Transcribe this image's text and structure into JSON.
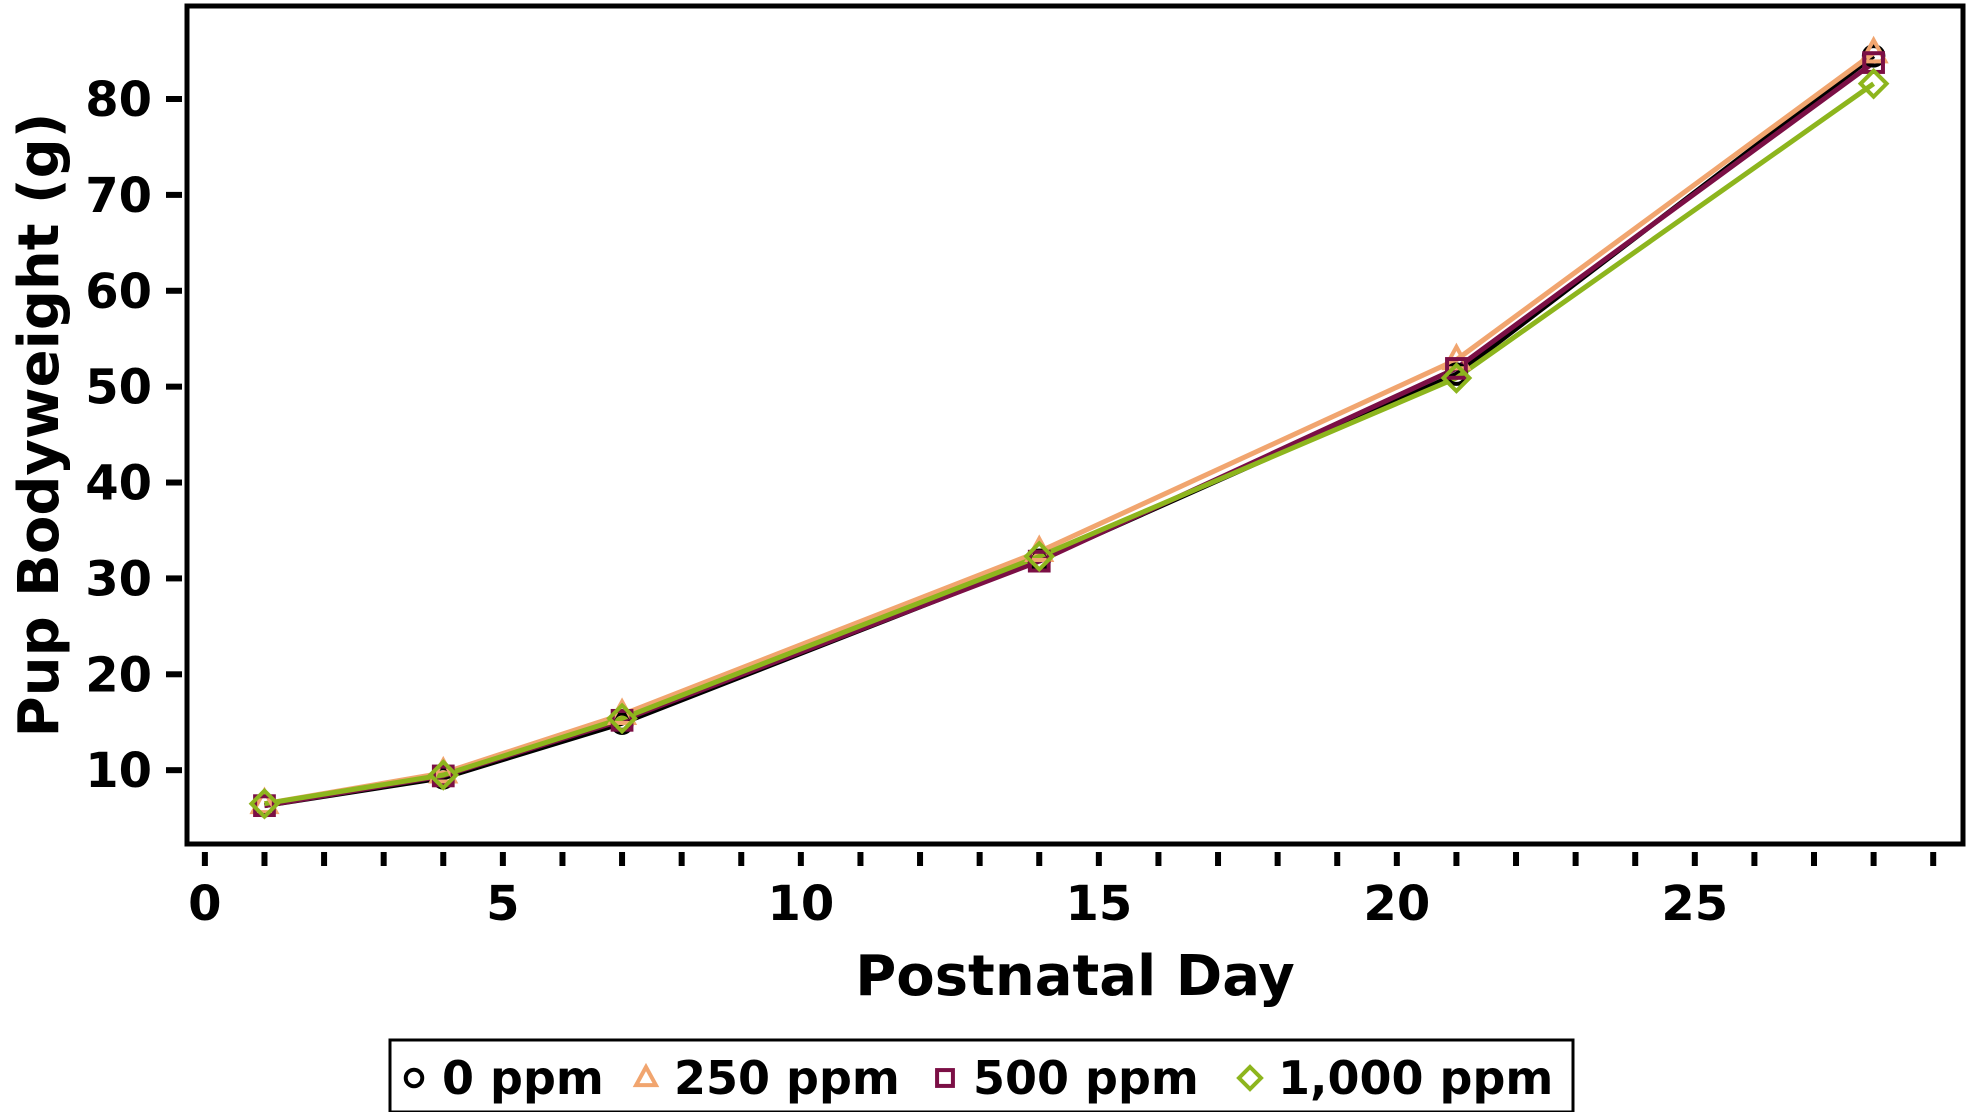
{
  "chart_data": {
    "type": "line",
    "xlabel": "Postnatal Day",
    "ylabel": "Pup Bodyweight (g)",
    "xlim": [
      -0.3,
      29.5
    ],
    "ylim": [
      2.3,
      89.7
    ],
    "x_major_ticks": [
      0,
      5,
      10,
      15,
      20,
      25
    ],
    "x_minor_ticks": [
      1,
      2,
      3,
      4,
      6,
      7,
      8,
      9,
      11,
      12,
      13,
      14,
      16,
      17,
      18,
      19,
      21,
      22,
      23,
      24,
      26,
      27,
      28,
      29
    ],
    "y_ticks": [
      10,
      20,
      30,
      40,
      50,
      60,
      70,
      80
    ],
    "x": [
      1,
      4,
      7,
      14,
      21,
      28
    ],
    "grid": false,
    "legend_position": "bottom",
    "series": [
      {
        "name": "0 ppm",
        "marker": "circle",
        "color": "#000000",
        "values": [
          6.3,
          9.2,
          14.9,
          31.9,
          51.3,
          84.5
        ]
      },
      {
        "name": "250 ppm",
        "marker": "triangle",
        "color": "#f1a56f",
        "values": [
          6.5,
          9.7,
          15.8,
          32.8,
          52.8,
          84.8
        ]
      },
      {
        "name": "500 ppm",
        "marker": "square",
        "color": "#7b0f45",
        "values": [
          6.3,
          9.4,
          15.2,
          31.8,
          51.9,
          83.8
        ]
      },
      {
        "name": "1,000 ppm",
        "marker": "diamond",
        "color": "#8db51d",
        "values": [
          6.5,
          9.5,
          15.4,
          32.3,
          50.9,
          81.6
        ]
      }
    ]
  }
}
